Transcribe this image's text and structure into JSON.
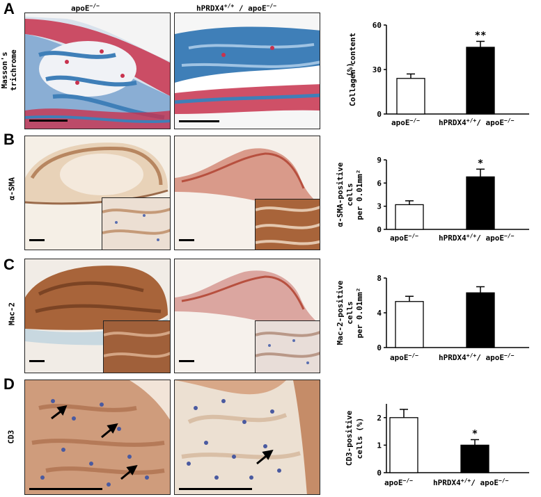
{
  "columns": {
    "left": "apoE",
    "left_sup": "−/−",
    "right_pre": "hPRDX4",
    "right_sup1": "+/+",
    "right_mid": "/ apoE",
    "right_sup2": "−/−"
  },
  "panels": [
    {
      "letter": "A",
      "row_label": [
        "Masson's",
        "trichrome"
      ]
    },
    {
      "letter": "B",
      "row_label": [
        "α-SMA"
      ]
    },
    {
      "letter": "C",
      "row_label": [
        "Mac-2"
      ]
    },
    {
      "letter": "D",
      "row_label": [
        "CD3"
      ]
    }
  ],
  "colors": {
    "bar_control": "#ffffff",
    "bar_treated": "#000000",
    "masson_blue": "#3f7fb8",
    "masson_red": "#c8324e",
    "dab_brown": "#a8643a",
    "hema_blue": "#5a6fb0"
  },
  "chart_data": [
    {
      "type": "bar",
      "ylabel": [
        "Collagen content",
        "(%)"
      ],
      "categories": [
        "apoE−/−",
        "hPRDX4+/+/ apoE−/−"
      ],
      "values": [
        24,
        45
      ],
      "errors": [
        3,
        4
      ],
      "ylim": [
        0,
        60
      ],
      "yticks": [
        "0",
        "30",
        "60"
      ],
      "annotations": [
        "",
        "**"
      ]
    },
    {
      "type": "bar",
      "ylabel": [
        "α-SMA-positive",
        "cells",
        "per 0.01mm²"
      ],
      "categories": [
        "apoE−/−",
        "hPRDX4+/+/ apoE−/−"
      ],
      "values": [
        3.2,
        6.8
      ],
      "errors": [
        0.5,
        1.0
      ],
      "ylim": [
        0,
        9
      ],
      "yticks": [
        "0",
        "3",
        "6",
        "9"
      ],
      "annotations": [
        "",
        "*"
      ]
    },
    {
      "type": "bar",
      "ylabel": [
        "Mac-2-positive",
        "cells",
        "per 0.01mm²"
      ],
      "categories": [
        "apoE−/−",
        "hPRDX4+/+/ apoE−/−"
      ],
      "values": [
        5.3,
        6.3
      ],
      "errors": [
        0.6,
        0.7
      ],
      "ylim": [
        0,
        8
      ],
      "yticks": [
        "0",
        "4",
        "8"
      ],
      "annotations": [
        "",
        ""
      ]
    },
    {
      "type": "bar",
      "ylabel": [
        "CD3-positive",
        "cells (%)"
      ],
      "categories": [
        "apoE−/−",
        "hPRDX4+/+/ apoE−/−"
      ],
      "values": [
        2.0,
        1.0
      ],
      "errors": [
        0.3,
        0.2
      ],
      "ylim": [
        0,
        2.5
      ],
      "yticks": [
        "0",
        "1",
        "2"
      ],
      "annotations": [
        "",
        "*"
      ]
    }
  ]
}
